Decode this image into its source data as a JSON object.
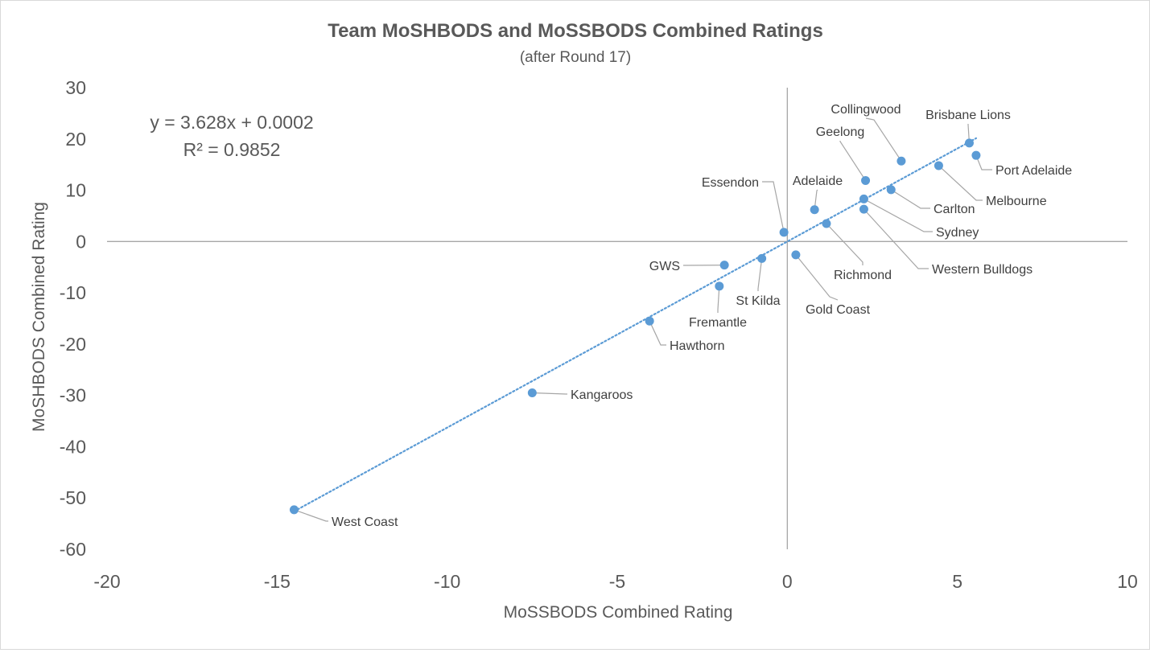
{
  "chart_data": {
    "type": "scatter",
    "title": "Team MoSHBODS and MoSSBODS Combined Ratings",
    "subtitle": "(after Round 17)",
    "xlabel": "MoSSBODS Combined Rating",
    "ylabel": "MoSHBODS Combined Rating",
    "xlim": [
      -20,
      10
    ],
    "ylim": [
      -60,
      30
    ],
    "x_ticks": [
      "-20",
      "-15",
      "-10",
      "-5",
      "0",
      "5",
      "10"
    ],
    "y_ticks": [
      "30",
      "20",
      "10",
      "0",
      "-10",
      "-20",
      "-30",
      "-40",
      "-50",
      "-60"
    ],
    "grid": false,
    "marker_color": "#5b9bd5",
    "trendline": {
      "type": "linear",
      "slope": 3.628,
      "intercept": 0.0002,
      "equation": "y = 3.628x + 0.0002",
      "r_squared": "R² = 0.9852",
      "color": "#5b9bd5",
      "style": "dotted"
    },
    "points": [
      {
        "label": "Brisbane Lions",
        "x": 5.35,
        "y": 19.2
      },
      {
        "label": "Collingwood",
        "x": 3.35,
        "y": 15.7
      },
      {
        "label": "Port Adelaide",
        "x": 5.55,
        "y": 16.8
      },
      {
        "label": "Geelong",
        "x": 2.3,
        "y": 11.9
      },
      {
        "label": "Melbourne",
        "x": 4.45,
        "y": 14.8
      },
      {
        "label": "Carlton",
        "x": 3.05,
        "y": 10.1
      },
      {
        "label": "Adelaide",
        "x": 0.8,
        "y": 6.2
      },
      {
        "label": "Sydney",
        "x": 2.25,
        "y": 8.3
      },
      {
        "label": "Western Bulldogs",
        "x": 2.25,
        "y": 6.3
      },
      {
        "label": "Essendon",
        "x": -0.1,
        "y": 1.8
      },
      {
        "label": "Richmond",
        "x": 1.15,
        "y": 3.5
      },
      {
        "label": "Gold Coast",
        "x": 0.25,
        "y": -2.6
      },
      {
        "label": "St Kilda",
        "x": -0.75,
        "y": -3.3
      },
      {
        "label": "GWS",
        "x": -1.85,
        "y": -4.6
      },
      {
        "label": "Fremantle",
        "x": -2.0,
        "y": -8.7
      },
      {
        "label": "Hawthorn",
        "x": -4.05,
        "y": -15.5
      },
      {
        "label": "Kangaroos",
        "x": -7.5,
        "y": -29.5
      },
      {
        "label": "West Coast",
        "x": -14.5,
        "y": -52.3
      }
    ]
  }
}
